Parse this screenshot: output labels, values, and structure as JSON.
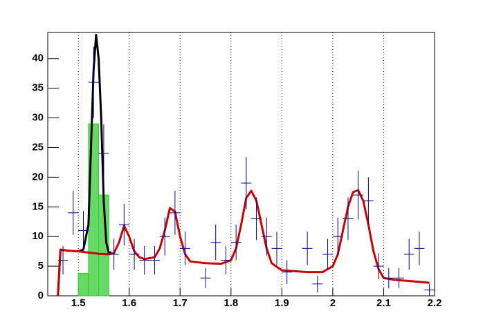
{
  "chart_data": {
    "type": "histogram-fit",
    "xlim": [
      1.44,
      2.2
    ],
    "ylim": [
      0,
      44.4
    ],
    "xticks": [
      1.5,
      1.6,
      1.7,
      1.8,
      1.9,
      2,
      2.1,
      2.2
    ],
    "yticks": [
      0,
      5,
      10,
      15,
      20,
      25,
      30,
      35,
      40
    ],
    "grid": "x",
    "points": {
      "color": "#000099",
      "bin_width": 0.02,
      "x": [
        1.47,
        1.49,
        1.51,
        1.53,
        1.55,
        1.57,
        1.59,
        1.61,
        1.63,
        1.65,
        1.67,
        1.69,
        1.71,
        1.75,
        1.77,
        1.79,
        1.81,
        1.83,
        1.85,
        1.87,
        1.89,
        1.91,
        1.95,
        1.97,
        1.99,
        2.01,
        2.03,
        2.05,
        2.07,
        2.09,
        2.11,
        2.13,
        2.15,
        2.17,
        2.19
      ],
      "values": [
        6,
        14,
        11,
        36,
        24,
        7,
        12,
        7,
        6,
        6,
        10,
        14,
        8,
        3,
        9,
        6,
        9,
        19,
        13,
        10,
        8,
        4,
        8,
        2,
        7,
        10,
        13,
        17,
        16,
        5,
        3,
        3,
        7,
        8,
        1
      ],
      "errors": [
        2.4,
        3.7,
        3.3,
        6,
        4.9,
        2.6,
        3.5,
        2.6,
        2.4,
        2.4,
        3.2,
        3.7,
        2.8,
        1.7,
        3,
        2.4,
        3,
        4.4,
        3.6,
        3.2,
        2.8,
        2,
        2.8,
        1.4,
        2.6,
        3.2,
        3.6,
        4.1,
        4,
        2.2,
        1.7,
        1.7,
        2.6,
        2.8,
        1
      ]
    },
    "filled": {
      "color": "#33cc33",
      "bins": [
        1.5,
        1.52,
        1.54,
        1.56
      ],
      "counts": [
        3.8,
        29,
        17
      ]
    },
    "curves": [
      {
        "color": "#000000",
        "x": [
          1.46,
          1.465,
          1.48,
          1.5,
          1.51,
          1.52,
          1.525,
          1.53,
          1.535,
          1.54,
          1.545,
          1.55,
          1.555,
          1.56,
          1.565
        ],
        "values": [
          0,
          7.8,
          7.6,
          7.5,
          7.8,
          12,
          25,
          38,
          44,
          40,
          30,
          16,
          9,
          7.2,
          7.4
        ]
      },
      {
        "color": "#cc0000",
        "x": [
          1.46,
          1.465,
          1.48,
          1.5,
          1.52,
          1.54,
          1.56,
          1.57,
          1.58,
          1.59,
          1.6,
          1.61,
          1.62,
          1.63,
          1.65,
          1.66,
          1.67,
          1.68,
          1.69,
          1.7,
          1.71,
          1.72,
          1.75,
          1.78,
          1.8,
          1.81,
          1.82,
          1.83,
          1.84,
          1.85,
          1.86,
          1.87,
          1.88,
          1.9,
          1.95,
          1.98,
          2.0,
          2.01,
          2.02,
          2.03,
          2.04,
          2.05,
          2.06,
          2.07,
          2.08,
          2.09,
          2.1,
          2.12,
          2.15,
          2.19
        ],
        "values": [
          0,
          7.8,
          7.6,
          7.5,
          7.3,
          7.1,
          7.0,
          7.2,
          9,
          11.8,
          10,
          7.5,
          6.5,
          6.2,
          6.5,
          8,
          11,
          14.8,
          14.2,
          10,
          7,
          5.8,
          5.5,
          5.4,
          6,
          8,
          12,
          16.5,
          17.7,
          16,
          12,
          8,
          5.5,
          4.3,
          4.0,
          4.0,
          5,
          7,
          11,
          15,
          17.5,
          17.8,
          16,
          12,
          7.5,
          4.5,
          3,
          2.7,
          2.5,
          2.2
        ]
      }
    ]
  }
}
